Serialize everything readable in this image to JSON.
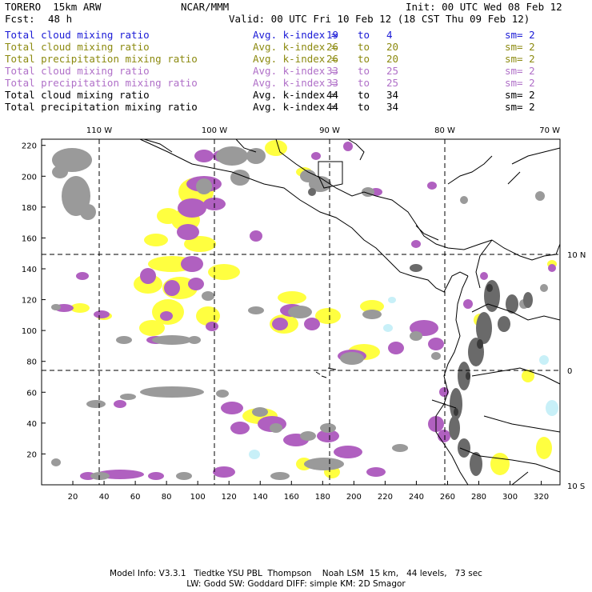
{
  "header": {
    "model": "TORERO  15km ARW",
    "org": "NCAR/MMM",
    "init": "Init: 00 UTC Wed 08 Feb 12",
    "fcst_label": "Fcst:",
    "fcst_value": "48 h",
    "valid": "Valid: 00 UTC Fri 10 Feb 12 (18 CST Thu 09 Feb 12)"
  },
  "legend": [
    {
      "field": "Total cloud mixing ratio",
      "kindex": "Avg. k-index =",
      "hi": "19",
      "to": "to",
      "lo": "4",
      "sm": "sm= 2",
      "color": "#1a1ad6"
    },
    {
      "field": "Total cloud mixing ratio",
      "kindex": "Avg. k-index =",
      "hi": "26",
      "to": "to",
      "lo": "20",
      "sm": "sm= 2",
      "color": "#8c8a10"
    },
    {
      "field": "Total precipitation mixing ratio",
      "kindex": "Avg. k-index =",
      "hi": "26",
      "to": "to",
      "lo": "20",
      "sm": "sm= 2",
      "color": "#8c8a10"
    },
    {
      "field": "Total cloud mixing ratio",
      "kindex": "Avg. k-index =",
      "hi": "33",
      "to": "to",
      "lo": "25",
      "sm": "sm= 2",
      "color": "#b070c8"
    },
    {
      "field": "Total precipitation mixing ratio",
      "kindex": "Avg. k-index =",
      "hi": "33",
      "to": "to",
      "lo": "25",
      "sm": "sm= 2",
      "color": "#b070c8"
    },
    {
      "field": "Total cloud mixing ratio",
      "kindex": "Avg. k-index =",
      "hi": "44",
      "to": "to",
      "lo": "34",
      "sm": "sm= 2",
      "color": "#000000"
    },
    {
      "field": "Total precipitation mixing ratio",
      "kindex": "Avg. k-index =",
      "hi": "44",
      "to": "to",
      "lo": "34",
      "sm": "sm= 2",
      "color": "#000000"
    }
  ],
  "map": {
    "lon_labels": [
      "110 W",
      "100 W",
      "90 W",
      "80 W",
      "70 W"
    ],
    "lat_labels": [
      "10 N",
      "0",
      "10 S"
    ],
    "x_ticks": [
      "20",
      "40",
      "60",
      "80",
      "100",
      "120",
      "140",
      "160",
      "180",
      "200",
      "220",
      "240",
      "260",
      "280",
      "300",
      "320"
    ],
    "y_ticks": [
      "20",
      "40",
      "60",
      "80",
      "100",
      "120",
      "140",
      "160",
      "180",
      "200",
      "220"
    ],
    "colors": {
      "gray": "#9a9a9a",
      "dark": "#5a5a5a",
      "purple": "#b060c0",
      "yellow": "#ffff40",
      "cyan": "#c8f0f8"
    }
  },
  "footer": {
    "line1": "Model Info: V3.3.1   Tiedtke YSU PBL  Thompson    Noah LSM  15 km,   44 levels,   73 sec",
    "line2": "LW: Godd SW: Goddard DIFF: simple KM: 2D Smagor"
  }
}
